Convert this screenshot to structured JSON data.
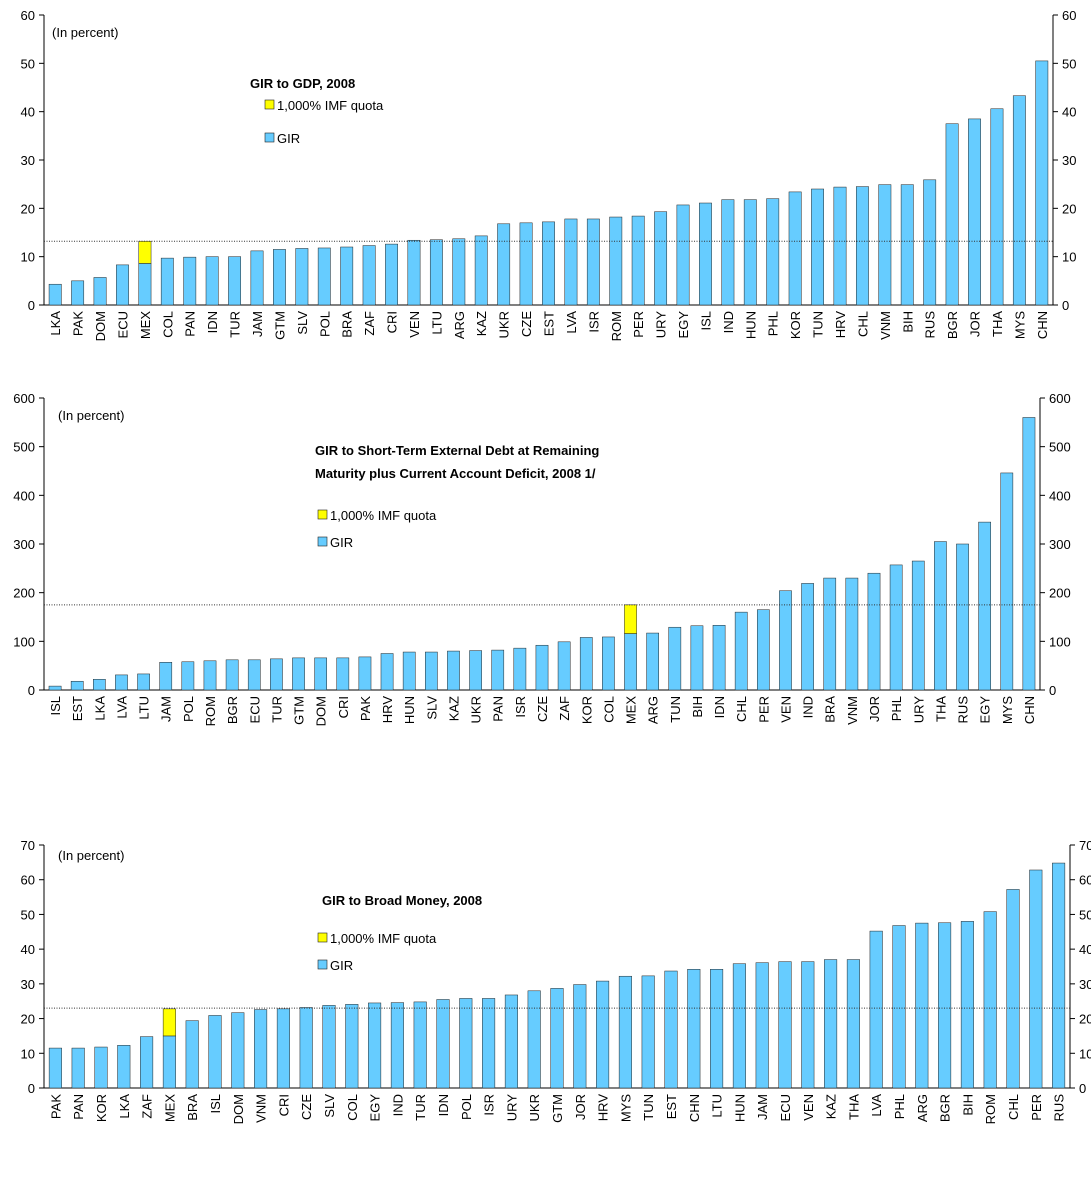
{
  "chart_data": [
    {
      "type": "bar",
      "title": "GIR to GDP, 2008",
      "annotation": "(In percent)",
      "categories": [
        "LKA",
        "PAK",
        "DOM",
        "ECU",
        "MEX",
        "COL",
        "PAN",
        "IDN",
        "TUR",
        "JAM",
        "GTM",
        "SLV",
        "POL",
        "BRA",
        "ZAF",
        "CRI",
        "VEN",
        "LTU",
        "ARG",
        "KAZ",
        "UKR",
        "CZE",
        "EST",
        "LVA",
        "ISR",
        "ROM",
        "PER",
        "URY",
        "EGY",
        "ISL",
        "IND",
        "HUN",
        "PHL",
        "KOR",
        "TUN",
        "HRV",
        "CHL",
        "VNM",
        "BIH",
        "RUS",
        "BGR",
        "JOR",
        "THA",
        "MYS",
        "CHN"
      ],
      "series": [
        {
          "name": "GIR",
          "color": "#66ccff",
          "values": [
            4.3,
            5,
            5.7,
            8.3,
            8.6,
            9.7,
            9.9,
            10,
            10,
            11.2,
            11.5,
            11.7,
            11.8,
            12,
            12.3,
            12.6,
            13.4,
            13.5,
            13.7,
            14.3,
            16.8,
            17,
            17.2,
            17.8,
            17.8,
            18.2,
            18.4,
            19.3,
            20.7,
            21.1,
            21.8,
            21.8,
            22,
            23.4,
            24,
            24.4,
            24.5,
            24.9,
            24.9,
            25.9,
            37.5,
            38.5,
            40.6,
            43.3,
            50.5
          ]
        },
        {
          "name": "1,000% IMF quota",
          "color": "#ffff00",
          "values": [
            null,
            null,
            null,
            null,
            4.6,
            null,
            null,
            null,
            null,
            null,
            null,
            null,
            null,
            null,
            null,
            null,
            null,
            null,
            null,
            null,
            null,
            null,
            null,
            null,
            null,
            null,
            null,
            null,
            null,
            null,
            null,
            null,
            null,
            null,
            null,
            null,
            null,
            null,
            null,
            null,
            null,
            null,
            null,
            null,
            null
          ]
        }
      ],
      "reference_line": 13.2,
      "ylim": [
        0,
        60
      ],
      "yticks": [
        0,
        10,
        20,
        30,
        40,
        50,
        60
      ]
    },
    {
      "type": "bar",
      "title": [
        "GIR to Short-Term External Debt at Remaining",
        "Maturity plus Current Account Deficit, 2008 1/"
      ],
      "annotation": "(In percent)",
      "categories": [
        "ISL",
        "EST",
        "LKA",
        "LVA",
        "LTU",
        "JAM",
        "POL",
        "ROM",
        "BGR",
        "ECU",
        "TUR",
        "GTM",
        "DOM",
        "CRI",
        "PAK",
        "HRV",
        "HUN",
        "SLV",
        "KAZ",
        "UKR",
        "PAN",
        "ISR",
        "CZE",
        "ZAF",
        "KOR",
        "COL",
        "MEX",
        "ARG",
        "TUN",
        "BIH",
        "IDN",
        "CHL",
        "PER",
        "VEN",
        "IND",
        "BRA",
        "VNM",
        "JOR",
        "PHL",
        "URY",
        "THA",
        "RUS",
        "EGY",
        "MYS",
        "CHN"
      ],
      "series": [
        {
          "name": "GIR",
          "color": "#66ccff",
          "values": [
            8,
            18,
            22,
            31,
            33,
            57,
            58,
            60,
            62,
            62,
            64,
            66,
            66,
            66,
            68,
            75,
            78,
            78,
            80,
            81,
            82,
            86,
            92,
            99,
            108,
            109,
            116,
            117,
            129,
            132,
            133,
            160,
            165,
            204,
            219,
            230,
            230,
            240,
            257,
            265,
            305,
            300,
            345,
            446,
            560
          ]
        },
        {
          "name": "1,000% IMF quota",
          "color": "#ffff00",
          "values": [
            null,
            null,
            null,
            null,
            null,
            null,
            null,
            null,
            null,
            null,
            null,
            null,
            null,
            null,
            null,
            null,
            null,
            null,
            null,
            null,
            null,
            null,
            null,
            null,
            null,
            null,
            59,
            null,
            null,
            null,
            null,
            null,
            null,
            null,
            null,
            null,
            null,
            null,
            null,
            null,
            null,
            null,
            null,
            null,
            null
          ]
        }
      ],
      "reference_line": 175,
      "ylim": [
        0,
        600
      ],
      "yticks": [
        0,
        100,
        200,
        300,
        400,
        500,
        600
      ]
    },
    {
      "type": "bar",
      "title": "GIR to Broad Money, 2008",
      "annotation": "(In percent)",
      "categories": [
        "PAK",
        "PAN",
        "KOR",
        "LKA",
        "ZAF",
        "MEX",
        "BRA",
        "ISL",
        "DOM",
        "VNM",
        "CRI",
        "CZE",
        "SLV",
        "COL",
        "EGY",
        "IND",
        "TUR",
        "IDN",
        "POL",
        "ISR",
        "URY",
        "UKR",
        "GTM",
        "JOR",
        "HRV",
        "MYS",
        "TUN",
        "EST",
        "CHN",
        "LTU",
        "HUN",
        "JAM",
        "ECU",
        "VEN",
        "KAZ",
        "THA",
        "LVA",
        "PHL",
        "ARG",
        "BGR",
        "BIH",
        "ROM",
        "CHL",
        "PER",
        "RUS"
      ],
      "series": [
        {
          "name": "GIR",
          "color": "#66ccff",
          "values": [
            11.5,
            11.5,
            11.8,
            12.3,
            14.8,
            15,
            19.4,
            20.9,
            21.7,
            22.6,
            22.8,
            23.2,
            23.8,
            24.1,
            24.5,
            24.6,
            24.8,
            25.5,
            25.8,
            25.8,
            26.8,
            28,
            28.7,
            29.8,
            30.8,
            32.2,
            32.3,
            33.7,
            34.2,
            34.2,
            35.8,
            36.1,
            36.4,
            36.4,
            37,
            37,
            45.2,
            46.8,
            47.5,
            47.6,
            48,
            50.8,
            57.2,
            62.8,
            64.8
          ]
        },
        {
          "name": "1,000% IMF quota",
          "color": "#ffff00",
          "values": [
            null,
            null,
            null,
            null,
            null,
            7.8,
            null,
            null,
            null,
            null,
            null,
            null,
            null,
            null,
            null,
            null,
            null,
            null,
            null,
            null,
            null,
            null,
            null,
            null,
            null,
            null,
            null,
            null,
            null,
            null,
            null,
            null,
            null,
            null,
            null,
            null,
            null,
            null,
            null,
            null,
            null,
            null,
            null,
            null,
            null
          ]
        }
      ],
      "reference_line": 23,
      "ylim": [
        0,
        70
      ],
      "yticks": [
        0,
        10,
        20,
        30,
        40,
        50,
        60,
        70
      ]
    }
  ]
}
